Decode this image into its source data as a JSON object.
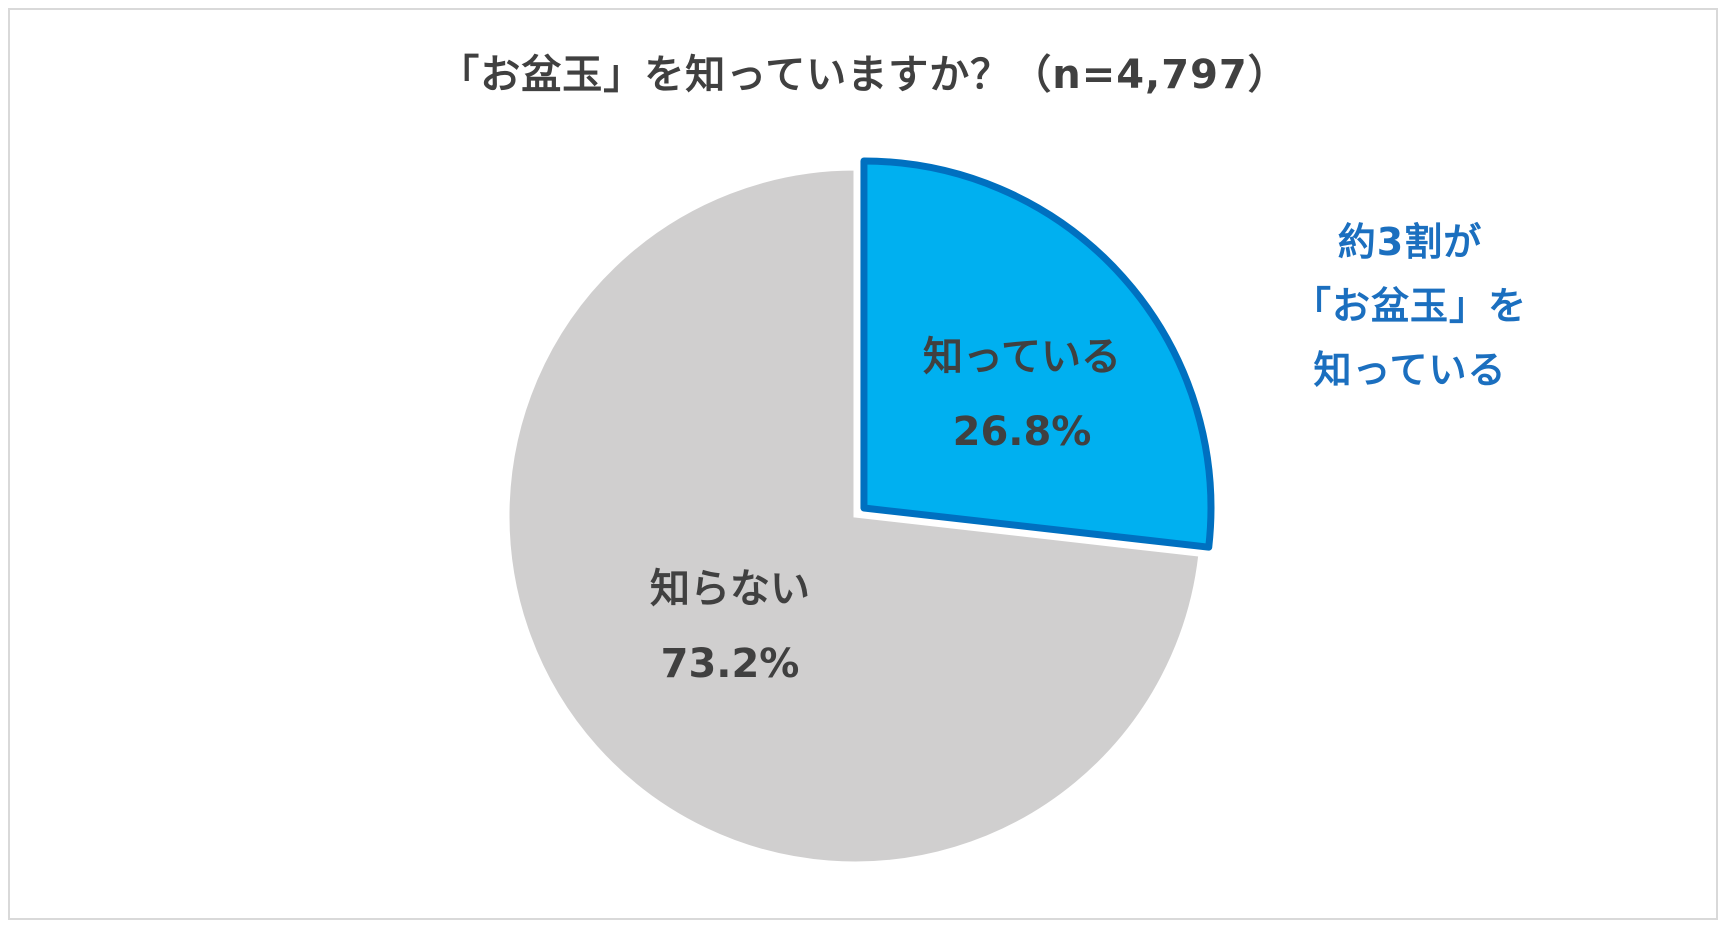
{
  "chart_data": {
    "type": "pie",
    "title": "「お盆玉」を知っていますか？（n=4,797）",
    "slices": [
      {
        "label": "知っている",
        "value": 26.8,
        "value_label": "26.8%",
        "color": "#00b0f0",
        "edge_color": "#0070c0",
        "exploded": true
      },
      {
        "label": "知らない",
        "value": 73.2,
        "value_label": "73.2%",
        "color": "#d0cfcf",
        "exploded": false
      }
    ],
    "start_angle_deg": 0,
    "direction": "clockwise",
    "legend": "none",
    "annotation": {
      "lines": [
        "約3割が",
        "「お盆玉」を",
        "知っている"
      ],
      "color": "#1b6fbf"
    }
  }
}
